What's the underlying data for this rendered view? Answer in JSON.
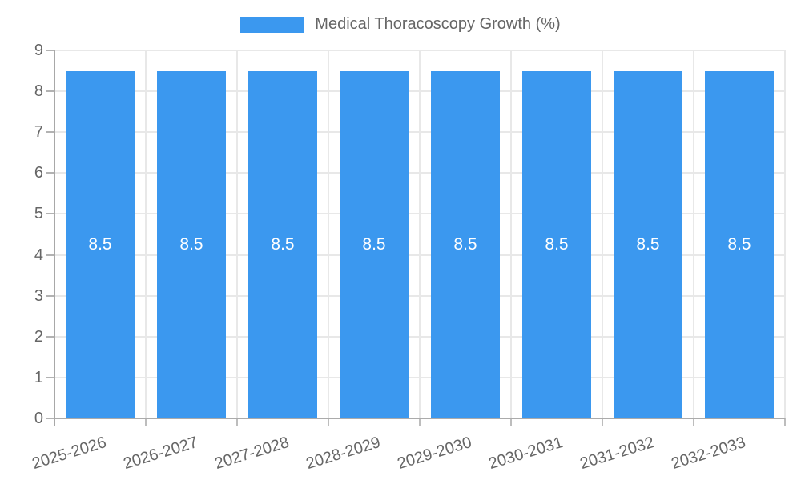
{
  "legend": {
    "label": "Medical Thoracoscopy Growth (%)",
    "position": "top"
  },
  "chart_data": {
    "type": "bar",
    "title": "Medical Thoracoscopy Growth (%)",
    "categories": [
      "2025-2026",
      "2026-2027",
      "2027-2028",
      "2028-2029",
      "2029-2030",
      "2030-2031",
      "2031-2032",
      "2032-2033"
    ],
    "series": [
      {
        "name": "Medical Thoracoscopy Growth (%)",
        "values": [
          8.5,
          8.5,
          8.5,
          8.5,
          8.5,
          8.5,
          8.5,
          8.5
        ]
      }
    ],
    "bar_value_labels": [
      "8.5",
      "8.5",
      "8.5",
      "8.5",
      "8.5",
      "8.5",
      "8.5",
      "8.5"
    ],
    "xlabel": "",
    "ylabel": "",
    "ylim": [
      0,
      9
    ],
    "y_ticks": [
      0,
      1,
      2,
      3,
      4,
      5,
      6,
      7,
      8,
      9
    ],
    "grid": true,
    "legend_position": "top",
    "colors": {
      "bar": "#3b98ef",
      "bar_label": "#ffffff",
      "grid": "#e8e8e8",
      "axis": "#ababab",
      "tick_text": "#666666",
      "legend_text": "#666666"
    }
  }
}
